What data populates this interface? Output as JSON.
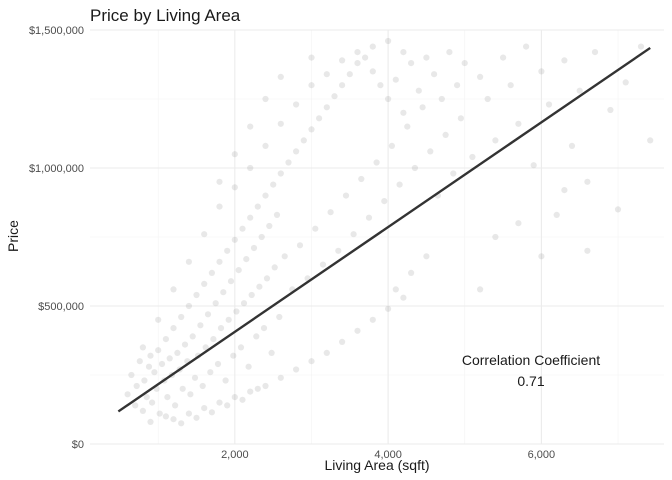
{
  "chart_data": {
    "type": "scatter",
    "title": "Price by Living Area",
    "xlabel": "Living Area (sqft)",
    "ylabel": "Price",
    "xlim": [
      110,
      7600
    ],
    "ylim": [
      0,
      1500000
    ],
    "x_ticks": [
      2000,
      4000,
      6000
    ],
    "x_tick_labels": [
      "2,000",
      "4,000",
      "6,000"
    ],
    "y_ticks": [
      0,
      500000,
      1000000,
      1500000
    ],
    "y_tick_labels": [
      "$0",
      "$500,000",
      "$1,000,000",
      "$1,500,000"
    ],
    "grid": true,
    "point_color": "#808080",
    "point_opacity": 0.18,
    "line_color": "#333333",
    "fit_line": {
      "x": [
        480,
        7420
      ],
      "y": [
        118000,
        1435000
      ]
    },
    "annotation": {
      "label": "Correlation Coefficient",
      "value": "0.71"
    },
    "points": [
      [
        600,
        180000
      ],
      [
        650,
        250000
      ],
      [
        700,
        140000
      ],
      [
        720,
        210000
      ],
      [
        760,
        300000
      ],
      [
        800,
        120000
      ],
      [
        820,
        230000
      ],
      [
        850,
        170000
      ],
      [
        880,
        280000
      ],
      [
        900,
        320000
      ],
      [
        920,
        150000
      ],
      [
        950,
        260000
      ],
      [
        980,
        200000
      ],
      [
        1000,
        340000
      ],
      [
        1020,
        110000
      ],
      [
        1050,
        290000
      ],
      [
        1080,
        230000
      ],
      [
        1100,
        380000
      ],
      [
        1120,
        170000
      ],
      [
        1150,
        310000
      ],
      [
        1180,
        250000
      ],
      [
        1200,
        420000
      ],
      [
        1220,
        140000
      ],
      [
        1250,
        330000
      ],
      [
        1280,
        270000
      ],
      [
        1300,
        460000
      ],
      [
        1320,
        200000
      ],
      [
        1350,
        360000
      ],
      [
        1380,
        300000
      ],
      [
        1400,
        500000
      ],
      [
        1420,
        180000
      ],
      [
        1450,
        390000
      ],
      [
        1480,
        240000
      ],
      [
        1500,
        540000
      ],
      [
        1520,
        320000
      ],
      [
        1550,
        430000
      ],
      [
        1580,
        210000
      ],
      [
        1600,
        580000
      ],
      [
        1620,
        350000
      ],
      [
        1650,
        470000
      ],
      [
        1680,
        260000
      ],
      [
        1700,
        620000
      ],
      [
        1720,
        380000
      ],
      [
        1750,
        510000
      ],
      [
        1780,
        290000
      ],
      [
        1800,
        660000
      ],
      [
        1820,
        420000
      ],
      [
        1850,
        550000
      ],
      [
        1880,
        230000
      ],
      [
        1900,
        700000
      ],
      [
        1920,
        450000
      ],
      [
        1950,
        590000
      ],
      [
        1980,
        320000
      ],
      [
        2000,
        740000
      ],
      [
        2020,
        480000
      ],
      [
        2050,
        630000
      ],
      [
        2080,
        350000
      ],
      [
        2100,
        780000
      ],
      [
        2120,
        510000
      ],
      [
        2150,
        670000
      ],
      [
        2180,
        280000
      ],
      [
        2200,
        820000
      ],
      [
        2220,
        540000
      ],
      [
        2250,
        710000
      ],
      [
        2280,
        390000
      ],
      [
        2300,
        860000
      ],
      [
        2320,
        570000
      ],
      [
        2350,
        750000
      ],
      [
        2380,
        420000
      ],
      [
        2400,
        900000
      ],
      [
        2420,
        600000
      ],
      [
        2450,
        790000
      ],
      [
        2480,
        330000
      ],
      [
        2500,
        940000
      ],
      [
        2520,
        640000
      ],
      [
        2550,
        830000
      ],
      [
        2580,
        460000
      ],
      [
        2600,
        980000
      ],
      [
        2650,
        680000
      ],
      [
        2700,
        1020000
      ],
      [
        2750,
        560000
      ],
      [
        2800,
        1060000
      ],
      [
        2850,
        720000
      ],
      [
        2900,
        1100000
      ],
      [
        2950,
        600000
      ],
      [
        3000,
        1140000
      ],
      [
        3050,
        780000
      ],
      [
        3100,
        1180000
      ],
      [
        3150,
        650000
      ],
      [
        3200,
        1220000
      ],
      [
        3250,
        840000
      ],
      [
        3300,
        1260000
      ],
      [
        3350,
        700000
      ],
      [
        3400,
        1300000
      ],
      [
        3450,
        900000
      ],
      [
        3500,
        1340000
      ],
      [
        3550,
        760000
      ],
      [
        3600,
        1380000
      ],
      [
        3650,
        960000
      ],
      [
        3700,
        1400000
      ],
      [
        3750,
        820000
      ],
      [
        3800,
        1350000
      ],
      [
        3850,
        1020000
      ],
      [
        3900,
        1300000
      ],
      [
        3950,
        880000
      ],
      [
        4000,
        1250000
      ],
      [
        4050,
        1080000
      ],
      [
        4100,
        1320000
      ],
      [
        4150,
        940000
      ],
      [
        4200,
        1200000
      ],
      [
        4250,
        1150000
      ],
      [
        4300,
        1380000
      ],
      [
        4350,
        1000000
      ],
      [
        4400,
        1280000
      ],
      [
        4450,
        1220000
      ],
      [
        4500,
        1400000
      ],
      [
        4550,
        1060000
      ],
      [
        4600,
        1340000
      ],
      [
        4650,
        900000
      ],
      [
        4700,
        1250000
      ],
      [
        4750,
        1120000
      ],
      [
        4800,
        1420000
      ],
      [
        4850,
        980000
      ],
      [
        4900,
        1300000
      ],
      [
        4950,
        1180000
      ],
      [
        5000,
        1380000
      ],
      [
        5100,
        1040000
      ],
      [
        5200,
        1330000
      ],
      [
        5300,
        1250000
      ],
      [
        5400,
        1100000
      ],
      [
        5500,
        1400000
      ],
      [
        5600,
        1300000
      ],
      [
        5700,
        1160000
      ],
      [
        5800,
        1440000
      ],
      [
        5900,
        1010000
      ],
      [
        6000,
        1350000
      ],
      [
        6100,
        1230000
      ],
      [
        6200,
        830000
      ],
      [
        6300,
        1390000
      ],
      [
        6400,
        1080000
      ],
      [
        6500,
        1280000
      ],
      [
        6600,
        950000
      ],
      [
        6700,
        1420000
      ],
      [
        6900,
        1210000
      ],
      [
        7100,
        1310000
      ],
      [
        7300,
        1440000
      ],
      [
        7420,
        1100000
      ],
      [
        1800,
        950000
      ],
      [
        2000,
        1050000
      ],
      [
        2200,
        1150000
      ],
      [
        2400,
        1250000
      ],
      [
        2600,
        1330000
      ],
      [
        3000,
        1400000
      ],
      [
        4100,
        560000
      ],
      [
        4300,
        620000
      ],
      [
        4500,
        680000
      ],
      [
        5200,
        560000
      ],
      [
        5400,
        750000
      ],
      [
        5700,
        800000
      ],
      [
        6000,
        680000
      ],
      [
        6300,
        920000
      ],
      [
        6600,
        700000
      ],
      [
        7000,
        850000
      ],
      [
        1200,
        90000
      ],
      [
        1400,
        110000
      ],
      [
        1600,
        130000
      ],
      [
        1800,
        150000
      ],
      [
        2000,
        170000
      ],
      [
        2200,
        190000
      ],
      [
        2400,
        210000
      ],
      [
        2600,
        240000
      ],
      [
        2800,
        270000
      ],
      [
        3000,
        300000
      ],
      [
        3200,
        330000
      ],
      [
        3400,
        370000
      ],
      [
        3600,
        410000
      ],
      [
        3800,
        450000
      ],
      [
        4000,
        490000
      ],
      [
        4200,
        530000
      ],
      [
        900,
        80000
      ],
      [
        1100,
        100000
      ],
      [
        1300,
        75000
      ],
      [
        1500,
        95000
      ],
      [
        1700,
        115000
      ],
      [
        1900,
        140000
      ],
      [
        2100,
        160000
      ],
      [
        2300,
        200000
      ],
      [
        800,
        350000
      ],
      [
        1000,
        450000
      ],
      [
        1200,
        560000
      ],
      [
        1400,
        660000
      ],
      [
        1600,
        760000
      ],
      [
        1800,
        860000
      ],
      [
        2000,
        930000
      ],
      [
        2200,
        1000000
      ],
      [
        2400,
        1080000
      ],
      [
        2600,
        1160000
      ],
      [
        2800,
        1230000
      ],
      [
        3000,
        1300000
      ],
      [
        3200,
        1340000
      ],
      [
        3400,
        1390000
      ],
      [
        3600,
        1420000
      ],
      [
        3800,
        1440000
      ],
      [
        4000,
        1460000
      ],
      [
        4200,
        1420000
      ]
    ]
  }
}
